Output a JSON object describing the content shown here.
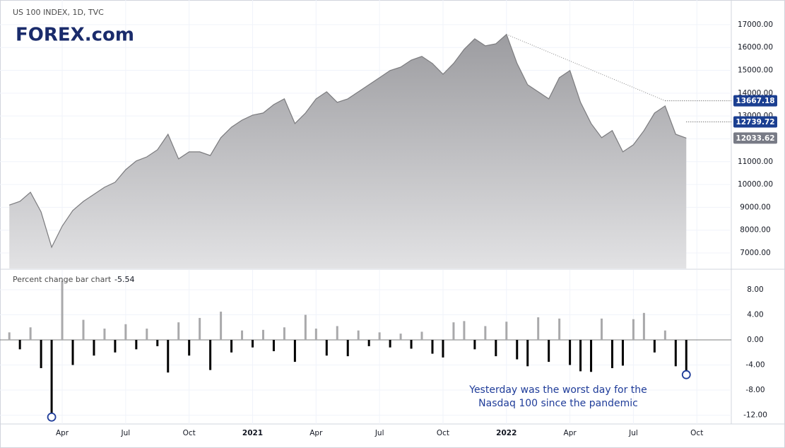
{
  "logo": "FOREX.com",
  "chart_data": [
    {
      "type": "area",
      "title": "US 100 INDEX, 1D, TVC",
      "categories": [
        null,
        null,
        null,
        null,
        null,
        "Apr",
        null,
        null,
        null,
        null,
        null,
        "Jul",
        null,
        null,
        null,
        null,
        null,
        "Oct",
        null,
        null,
        null,
        null,
        null,
        "2021",
        null,
        null,
        null,
        null,
        null,
        "Apr",
        null,
        null,
        null,
        null,
        null,
        "Jul",
        null,
        null,
        null,
        null,
        null,
        "Oct",
        null,
        null,
        null,
        null,
        null,
        "2022",
        null,
        null,
        null,
        null,
        null,
        "Apr",
        null,
        null,
        null,
        null,
        null,
        "Jul",
        null,
        null,
        null,
        null,
        null,
        "Oct"
      ],
      "values": [
        9100,
        9260,
        9660,
        8800,
        7250,
        8180,
        8860,
        9260,
        9570,
        9880,
        10100,
        10650,
        11030,
        11210,
        11520,
        12200,
        11120,
        11430,
        11430,
        11270,
        12050,
        12510,
        12820,
        13040,
        13130,
        13500,
        13750,
        12670,
        13130,
        13750,
        14060,
        13600,
        13750,
        14060,
        14370,
        14680,
        14990,
        15140,
        15450,
        15610,
        15300,
        14830,
        15300,
        15920,
        16380,
        16070,
        16160,
        16573,
        15300,
        14370,
        14060,
        13750,
        14680,
        14990,
        13600,
        12670,
        12050,
        12360,
        11430,
        11740,
        12360,
        13130,
        13440,
        12200,
        12033.62,
        null
      ],
      "color": "#7b7b7e",
      "ylim": [
        6320,
        18080
      ],
      "yticks": [
        {
          "value": 7000,
          "label": "7000.00"
        },
        {
          "value": 8000,
          "label": "8000.00"
        },
        {
          "value": 9000,
          "label": "9000.00"
        },
        {
          "value": 10000,
          "label": "10000.00"
        },
        {
          "value": 11000,
          "label": "11000.00"
        },
        {
          "value": 12000,
          "label": "12000.00"
        },
        {
          "value": 13000,
          "label": "13000.00"
        },
        {
          "value": 14000,
          "label": "14000.00"
        },
        {
          "value": 15000,
          "label": "15000.00"
        },
        {
          "value": 16000,
          "label": "16000.00"
        },
        {
          "value": 17000,
          "label": "17000.00"
        }
      ],
      "levels": [
        13667.18,
        12739.72
      ],
      "level_color": "#1b3f91",
      "last_value": 12033.62,
      "last_color": "#787b86",
      "trendline": [
        16573,
        13667.18
      ]
    },
    {
      "type": "bar",
      "title": "Percent change bar chart",
      "last_value": -5.54,
      "categories": [
        null,
        null,
        null,
        null,
        null,
        "Apr",
        null,
        null,
        null,
        null,
        null,
        "Jul",
        null,
        null,
        null,
        null,
        null,
        "Oct",
        null,
        null,
        null,
        null,
        null,
        "2021",
        null,
        null,
        null,
        null,
        null,
        "Apr",
        null,
        null,
        null,
        null,
        null,
        "Jul",
        null,
        null,
        null,
        null,
        null,
        "Oct",
        null,
        null,
        null,
        null,
        null,
        "2022",
        null,
        null,
        null,
        null,
        null,
        "Apr",
        null,
        null,
        null,
        null,
        null,
        "Jul",
        null,
        null,
        null,
        null,
        null,
        "Oct"
      ],
      "values": [
        1.2,
        -1.5,
        2.0,
        -4.5,
        -12.3,
        9.4,
        -4.0,
        3.2,
        -2.5,
        1.8,
        -2.0,
        2.5,
        -1.5,
        1.8,
        -1.0,
        -5.2,
        2.8,
        -2.5,
        3.5,
        -4.8,
        4.5,
        -2.0,
        1.5,
        -1.2,
        1.6,
        -1.8,
        2.0,
        -3.5,
        4.0,
        1.8,
        -2.5,
        2.2,
        -2.6,
        1.5,
        -1.0,
        1.2,
        -1.2,
        1.0,
        -1.4,
        1.3,
        -2.2,
        -2.8,
        2.8,
        3.0,
        -1.5,
        2.2,
        -2.6,
        2.9,
        -3.1,
        -4.2,
        3.6,
        -3.5,
        3.4,
        -4.0,
        -5.0,
        -5.1,
        3.4,
        -4.5,
        -4.1,
        3.3,
        4.3,
        -2.0,
        1.5,
        -4.2,
        -5.54,
        null
      ],
      "up_color": "#a9a9ab",
      "down_color": "#000000",
      "ylim": [
        -13.4,
        11.15
      ],
      "yticks": [
        {
          "value": 8,
          "label": "8.00"
        },
        {
          "value": 4,
          "label": "4.00"
        },
        {
          "value": 0,
          "label": "0.00"
        },
        {
          "value": -4,
          "label": "-4.00"
        },
        {
          "value": -8,
          "label": "-8.00"
        },
        {
          "value": -12,
          "label": "-12.00"
        }
      ],
      "annotation": [
        "Yesterday was the worst day for the",
        "Nasdaq 100 since the pandemic"
      ]
    }
  ]
}
